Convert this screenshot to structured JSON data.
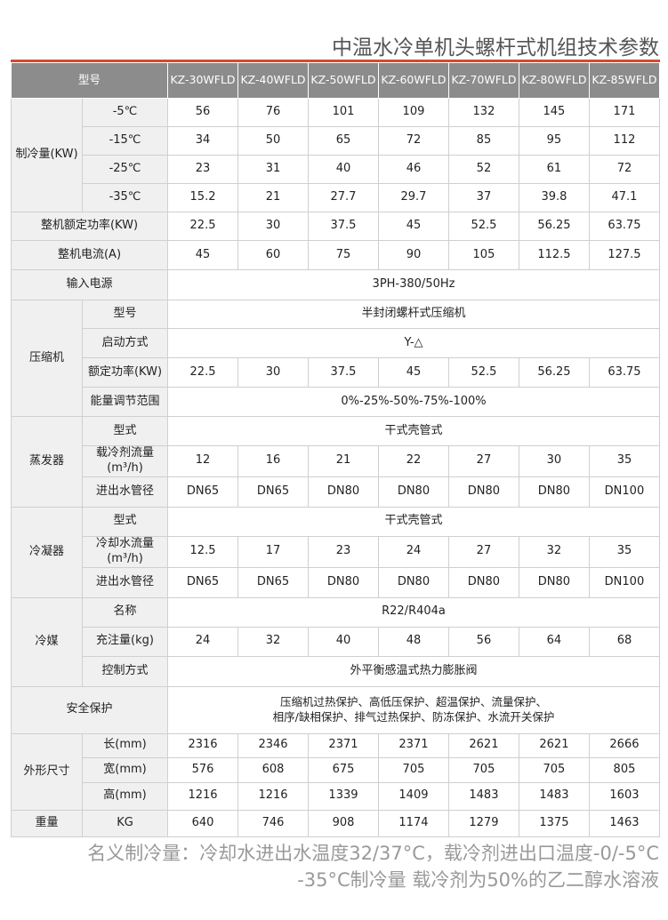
{
  "title": "中温水冷单机头螺杆式机组技术参数",
  "colors": {
    "accent_line": "#d9482b",
    "header_bg": "#8c8c8c",
    "label_bg": "#f0f0f0"
  },
  "header": {
    "label": "型号",
    "models": [
      "KZ-30WFLD",
      "KZ-40WFLD",
      "KZ-50WFLD",
      "KZ-60WFLD",
      "KZ-70WFLD",
      "KZ-80WFLD",
      "KZ-85WFLD"
    ]
  },
  "groups": [
    {
      "label": "制冷量(KW)",
      "rows": [
        {
          "label": "-5℃",
          "values": [
            "56",
            "76",
            "101",
            "109",
            "132",
            "145",
            "171"
          ]
        },
        {
          "label": "-15℃",
          "values": [
            "34",
            "50",
            "65",
            "72",
            "85",
            "95",
            "112"
          ]
        },
        {
          "label": "-25℃",
          "values": [
            "23",
            "31",
            "40",
            "46",
            "52",
            "61",
            "72"
          ]
        },
        {
          "label": "-35℃",
          "values": [
            "15.2",
            "21",
            "27.7",
            "29.7",
            "37",
            "39.8",
            "47.1"
          ]
        }
      ]
    },
    {
      "label": "整机额定功率(KW)",
      "rows": [
        {
          "values": [
            "22.5",
            "30",
            "37.5",
            "45",
            "52.5",
            "56.25",
            "63.75"
          ]
        }
      ]
    },
    {
      "label": "整机电流(A)",
      "rows": [
        {
          "values": [
            "45",
            "60",
            "75",
            "90",
            "105",
            "112.5",
            "127.5"
          ]
        }
      ]
    },
    {
      "label": "输入电源",
      "rows": [
        {
          "span": "3PH-380/50Hz"
        }
      ]
    },
    {
      "label": "压缩机",
      "rows": [
        {
          "label": "型号",
          "span": "半封闭螺杆式压缩机"
        },
        {
          "label": "启动方式",
          "span": "Y-△"
        },
        {
          "label": "额定功率(KW)",
          "values": [
            "22.5",
            "30",
            "37.5",
            "45",
            "52.5",
            "56.25",
            "63.75"
          ]
        },
        {
          "label": "能量调节范围",
          "span": "0%-25%-50%-75%-100%"
        }
      ]
    },
    {
      "label": "蒸发器",
      "rows": [
        {
          "label": "型式",
          "span": "干式壳管式"
        },
        {
          "label": "载冷剂流量(m³/h)",
          "values": [
            "12",
            "16",
            "21",
            "22",
            "27",
            "30",
            "35"
          ]
        },
        {
          "label": "进出水管径",
          "values": [
            "DN65",
            "DN65",
            "DN80",
            "DN80",
            "DN80",
            "DN80",
            "DN100"
          ]
        }
      ]
    },
    {
      "label": "冷凝器",
      "rows": [
        {
          "label": "型式",
          "span": "干式壳管式"
        },
        {
          "label": "冷却水流量(m³/h)",
          "values": [
            "12.5",
            "17",
            "23",
            "24",
            "27",
            "32",
            "35"
          ]
        },
        {
          "label": "进出水管径",
          "values": [
            "DN65",
            "DN65",
            "DN80",
            "DN80",
            "DN80",
            "DN80",
            "DN100"
          ]
        }
      ]
    },
    {
      "label": "冷媒",
      "rows": [
        {
          "label": "名称",
          "span": "R22/R404a"
        },
        {
          "label": "充注量(kg)",
          "values": [
            "24",
            "32",
            "40",
            "48",
            "56",
            "64",
            "68"
          ]
        },
        {
          "label": "控制方式",
          "span": "外平衡感温式热力膨胀阀"
        }
      ]
    },
    {
      "label": "安全保护",
      "rows": [
        {
          "span_lines": [
            "压缩机过热保护、高低压保护、超温保护、流量保护、",
            "相序/缺相保护、排气过热保护、防冻保护、水流开关保护"
          ]
        }
      ]
    },
    {
      "label": "外形尺寸",
      "rows": [
        {
          "label": "长(mm)",
          "values": [
            "2316",
            "2346",
            "2371",
            "2371",
            "2621",
            "2621",
            "2666"
          ]
        },
        {
          "label": "宽(mm)",
          "values": [
            "576",
            "608",
            "675",
            "705",
            "705",
            "705",
            "805"
          ]
        },
        {
          "label": "高(mm)",
          "values": [
            "1216",
            "1216",
            "1339",
            "1409",
            "1483",
            "1483",
            "1603"
          ]
        }
      ]
    },
    {
      "label": "重量",
      "rows": [
        {
          "label": "KG",
          "values": [
            "640",
            "746",
            "908",
            "1174",
            "1279",
            "1375",
            "1463"
          ]
        }
      ]
    }
  ],
  "notes": [
    "名义制冷量：冷却水进出水温度32/37°C，载冷剂进出口温度-0/-5°C",
    "-35°C制冷量   载冷剂为50%的乙二醇水溶液"
  ]
}
